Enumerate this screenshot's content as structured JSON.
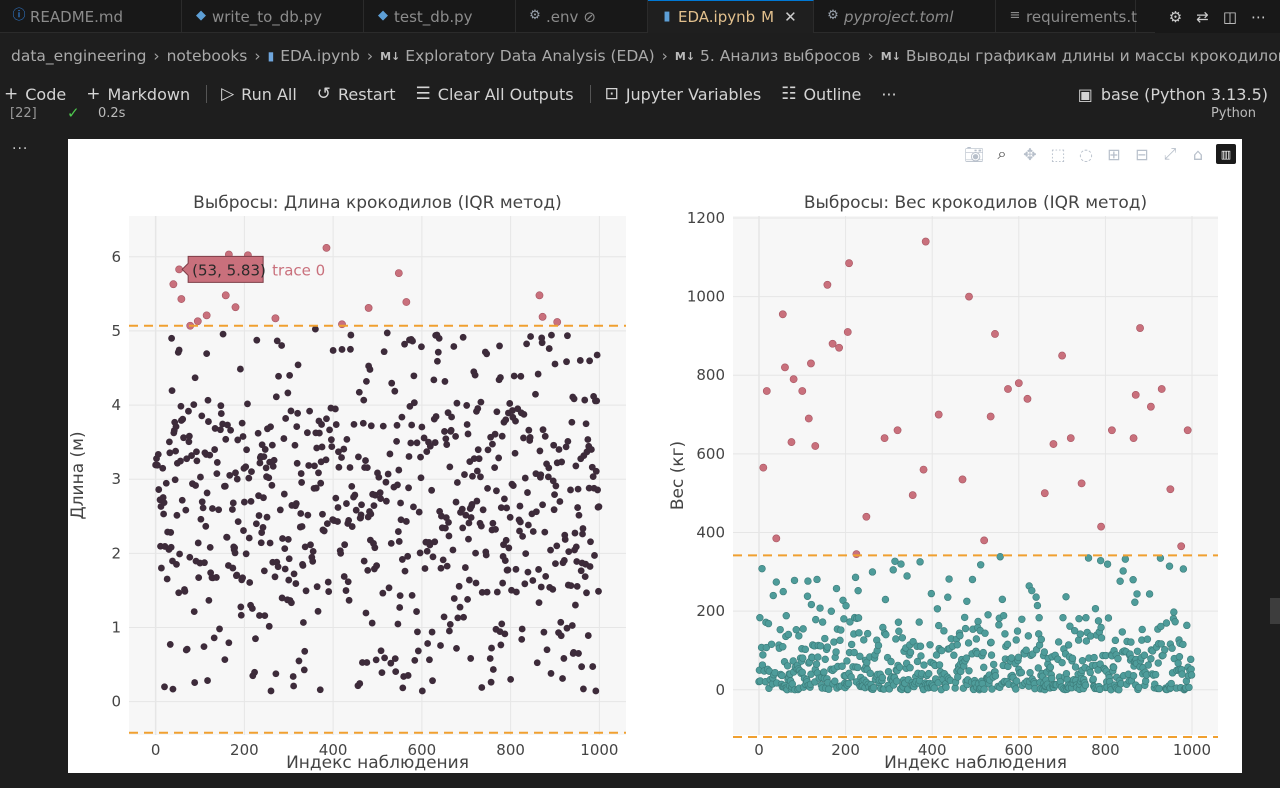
{
  "tabs": [
    {
      "label": "README.md",
      "icon": "info-icon",
      "active": false
    },
    {
      "label": "write_to_db.py",
      "icon": "python-icon",
      "active": false
    },
    {
      "label": "test_db.py",
      "icon": "python-icon",
      "active": false
    },
    {
      "label": ".env",
      "icon": "gear-icon",
      "active": false,
      "badge": "⊘"
    },
    {
      "label": "EDA.ipynb",
      "icon": "notebook-icon",
      "active": true,
      "badge": "M"
    },
    {
      "label": "pyproject.toml",
      "icon": "gear-icon",
      "active": false
    },
    {
      "label": "requirements.t",
      "icon": "list-icon",
      "active": false
    }
  ],
  "breadcrumb": {
    "items": [
      "data_engineering",
      "notebooks",
      "EDA.ipynb",
      "Exploratory Data Analysis (EDA)",
      "5. Анализ выбросов",
      "Выводы графикам длины и массы крокодилов"
    ],
    "md_tag": "M↓"
  },
  "toolbar": {
    "code": "Code",
    "markdown": "Markdown",
    "run_all": "Run All",
    "restart": "Restart",
    "clear_outputs": "Clear All Outputs",
    "variables": "Jupyter Variables",
    "outline": "Outline",
    "more": "···",
    "kernel": "base (Python 3.13.5)"
  },
  "cell": {
    "exec_count": "[22]",
    "duration": "0.2s",
    "language": "Python",
    "more": "···"
  },
  "colors": {
    "normal_left": "#3d2b3a",
    "outlier": "#c9707c",
    "normal_right": "#4e9c9a",
    "threshold": "#f0a030",
    "grid": "#e6e6e6",
    "plot_bg": "#f7f7f7"
  },
  "chart_data": [
    {
      "type": "scatter",
      "title": "Выбросы: Длина крокодилов (IQR метод)",
      "xlabel": "Индекс наблюдения",
      "ylabel": "Длина (м)",
      "xlim": [
        -60,
        1060
      ],
      "ylim": [
        -0.45,
        6.55
      ],
      "xticks": [
        0,
        200,
        400,
        600,
        800,
        1000
      ],
      "yticks": [
        0,
        1,
        2,
        3,
        4,
        5,
        6
      ],
      "thresholds": [
        5.07,
        -0.42
      ],
      "n_points": 1000,
      "normal_range": [
        0.13,
        5.05
      ],
      "outliers": {
        "x": [
          40,
          53,
          58,
          78,
          95,
          115,
          137,
          158,
          165,
          180,
          208,
          270,
          385,
          420,
          480,
          548,
          565,
          865,
          872,
          905
        ],
        "y": [
          5.63,
          5.83,
          5.43,
          5.07,
          5.13,
          5.21,
          5.82,
          5.48,
          6.03,
          5.32,
          6.02,
          5.17,
          6.12,
          5.09,
          5.31,
          5.78,
          5.39,
          5.48,
          5.19,
          5.12
        ]
      },
      "hover": {
        "text": "(53, 5.83)",
        "trace": "trace 0"
      }
    },
    {
      "type": "scatter",
      "title": "Выбросы: Вес крокодилов (IQR метод)",
      "xlabel": "Индекс наблюдения",
      "ylabel": "Вес (кг)",
      "xlim": [
        -60,
        1060
      ],
      "ylim": [
        -115,
        1205
      ],
      "xticks": [
        0,
        200,
        400,
        600,
        800,
        1000
      ],
      "yticks": [
        0,
        200,
        400,
        600,
        800,
        1000,
        1200
      ],
      "thresholds": [
        342,
        -120
      ],
      "n_points": 1000,
      "normal_range": [
        0,
        340
      ],
      "outliers": {
        "x": [
          10,
          18,
          40,
          55,
          60,
          75,
          80,
          100,
          115,
          120,
          130,
          158,
          170,
          185,
          205,
          208,
          225,
          248,
          290,
          320,
          355,
          380,
          385,
          415,
          470,
          485,
          520,
          535,
          545,
          575,
          600,
          620,
          660,
          680,
          700,
          720,
          745,
          790,
          815,
          865,
          870,
          880,
          905,
          930,
          950,
          975,
          990
        ],
        "y": [
          565,
          760,
          385,
          955,
          820,
          630,
          790,
          760,
          690,
          830,
          620,
          1030,
          880,
          870,
          910,
          1085,
          345,
          440,
          640,
          660,
          495,
          560,
          1140,
          700,
          535,
          1000,
          380,
          695,
          905,
          765,
          780,
          740,
          500,
          625,
          850,
          640,
          525,
          415,
          660,
          640,
          750,
          920,
          720,
          765,
          510,
          365,
          660
        ]
      }
    }
  ]
}
